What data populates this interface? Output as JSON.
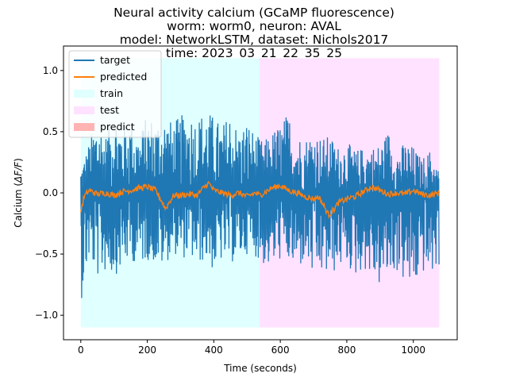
{
  "chart_data": {
    "type": "line",
    "title_lines": [
      "Neural activity calcium (GCaMP fluorescence)",
      "worm: worm0, neuron: AVAL",
      "model: NetworkLSTM, dataset: Nichols2017",
      "time: 2023_03_21_22_35_25"
    ],
    "xlabel": "Time (seconds)",
    "ylabel_prefix": "Calcium (",
    "ylabel_math": "ΔF/F",
    "ylabel_suffix": ")",
    "xlim": [
      -52,
      1132
    ],
    "ylim": [
      -1.2,
      1.2
    ],
    "x_ticks": [
      0,
      200,
      400,
      600,
      800,
      1000
    ],
    "x_tick_labels": [
      "0",
      "200",
      "400",
      "600",
      "800",
      "1000"
    ],
    "y_ticks": [
      -1.0,
      -0.5,
      0.0,
      0.5,
      1.0
    ],
    "y_tick_labels": [
      "−1.0",
      "−0.5",
      "0.0",
      "0.5",
      "1.0"
    ],
    "grid": false,
    "legend_position": "top-left",
    "regions": [
      {
        "name": "train",
        "x_start": 0,
        "x_end": 538,
        "y_start": -1.1,
        "y_end": 1.1,
        "color": "#e0ffff"
      },
      {
        "name": "test",
        "x_start": 538,
        "x_end": 1078,
        "y_start": -1.1,
        "y_end": 1.1,
        "color": "#ffe2ff"
      }
    ],
    "legend": [
      {
        "label": "target",
        "kind": "line",
        "color": "#1f77b4"
      },
      {
        "label": "predicted",
        "kind": "line",
        "color": "#ff7f0e"
      },
      {
        "label": "train",
        "kind": "patch",
        "color": "#e0ffff"
      },
      {
        "label": "test",
        "kind": "patch",
        "color": "#ffe2ff"
      },
      {
        "label": "predict",
        "kind": "patch",
        "color": "#ffb3b3"
      }
    ],
    "series": [
      {
        "name": "target",
        "color": "#1f77b4",
        "x": [
          0,
          25,
          50,
          75,
          100,
          125,
          150,
          175,
          200,
          225,
          250,
          275,
          300,
          325,
          350,
          375,
          400,
          425,
          450,
          475,
          500,
          525,
          550,
          575,
          600,
          625,
          650,
          675,
          700,
          725,
          750,
          775,
          800,
          825,
          850,
          875,
          900,
          925,
          950,
          975,
          1000,
          1025,
          1050,
          1078
        ],
        "y_high": [
          0.2,
          0.42,
          0.63,
          0.48,
          0.68,
          0.55,
          0.62,
          0.47,
          0.65,
          0.6,
          0.64,
          0.58,
          0.63,
          0.68,
          0.62,
          0.69,
          0.63,
          0.55,
          0.68,
          0.5,
          0.6,
          0.48,
          0.42,
          0.5,
          0.58,
          0.66,
          0.48,
          0.45,
          0.52,
          0.45,
          0.47,
          0.38,
          0.42,
          0.35,
          0.37,
          0.38,
          0.4,
          0.52,
          0.34,
          0.42,
          0.38,
          0.28,
          0.35,
          0.18
        ],
        "y_low": [
          -0.9,
          -0.55,
          -0.7,
          -0.65,
          -0.68,
          -0.62,
          -0.55,
          -0.6,
          -0.55,
          -0.58,
          -0.62,
          -0.48,
          -0.55,
          -0.52,
          -0.6,
          -0.55,
          -0.65,
          -0.56,
          -0.58,
          -0.55,
          -0.5,
          -0.52,
          -0.6,
          -0.62,
          -0.55,
          -0.58,
          -0.67,
          -0.55,
          -0.72,
          -0.68,
          -0.7,
          -0.62,
          -0.6,
          -0.7,
          -0.62,
          -0.7,
          -0.78,
          -0.7,
          -0.65,
          -0.75,
          -0.82,
          -0.65,
          -0.7,
          -0.6
        ]
      },
      {
        "name": "predicted",
        "color": "#ff7f0e",
        "x": [
          0,
          10,
          25,
          50,
          75,
          100,
          125,
          150,
          175,
          200,
          225,
          240,
          255,
          265,
          280,
          300,
          325,
          350,
          375,
          385,
          400,
          425,
          450,
          475,
          500,
          525,
          538,
          550,
          575,
          600,
          625,
          650,
          675,
          700,
          715,
          730,
          745,
          760,
          775,
          800,
          825,
          850,
          875,
          900,
          925,
          950,
          975,
          1000,
          1025,
          1050,
          1078
        ],
        "y": [
          -0.15,
          -0.03,
          0.02,
          -0.01,
          0.0,
          -0.02,
          0.01,
          0.02,
          0.04,
          0.05,
          0.02,
          -0.05,
          -0.13,
          -0.08,
          -0.02,
          -0.02,
          -0.01,
          -0.02,
          0.06,
          0.08,
          0.02,
          0.0,
          -0.02,
          0.0,
          -0.03,
          0.0,
          -0.02,
          0.0,
          0.04,
          0.06,
          0.02,
          0.0,
          -0.03,
          -0.05,
          -0.03,
          -0.1,
          -0.18,
          -0.14,
          -0.08,
          -0.05,
          -0.03,
          0.01,
          0.05,
          0.02,
          -0.01,
          0.0,
          -0.01,
          0.02,
          -0.01,
          -0.02,
          0.0
        ]
      }
    ]
  }
}
